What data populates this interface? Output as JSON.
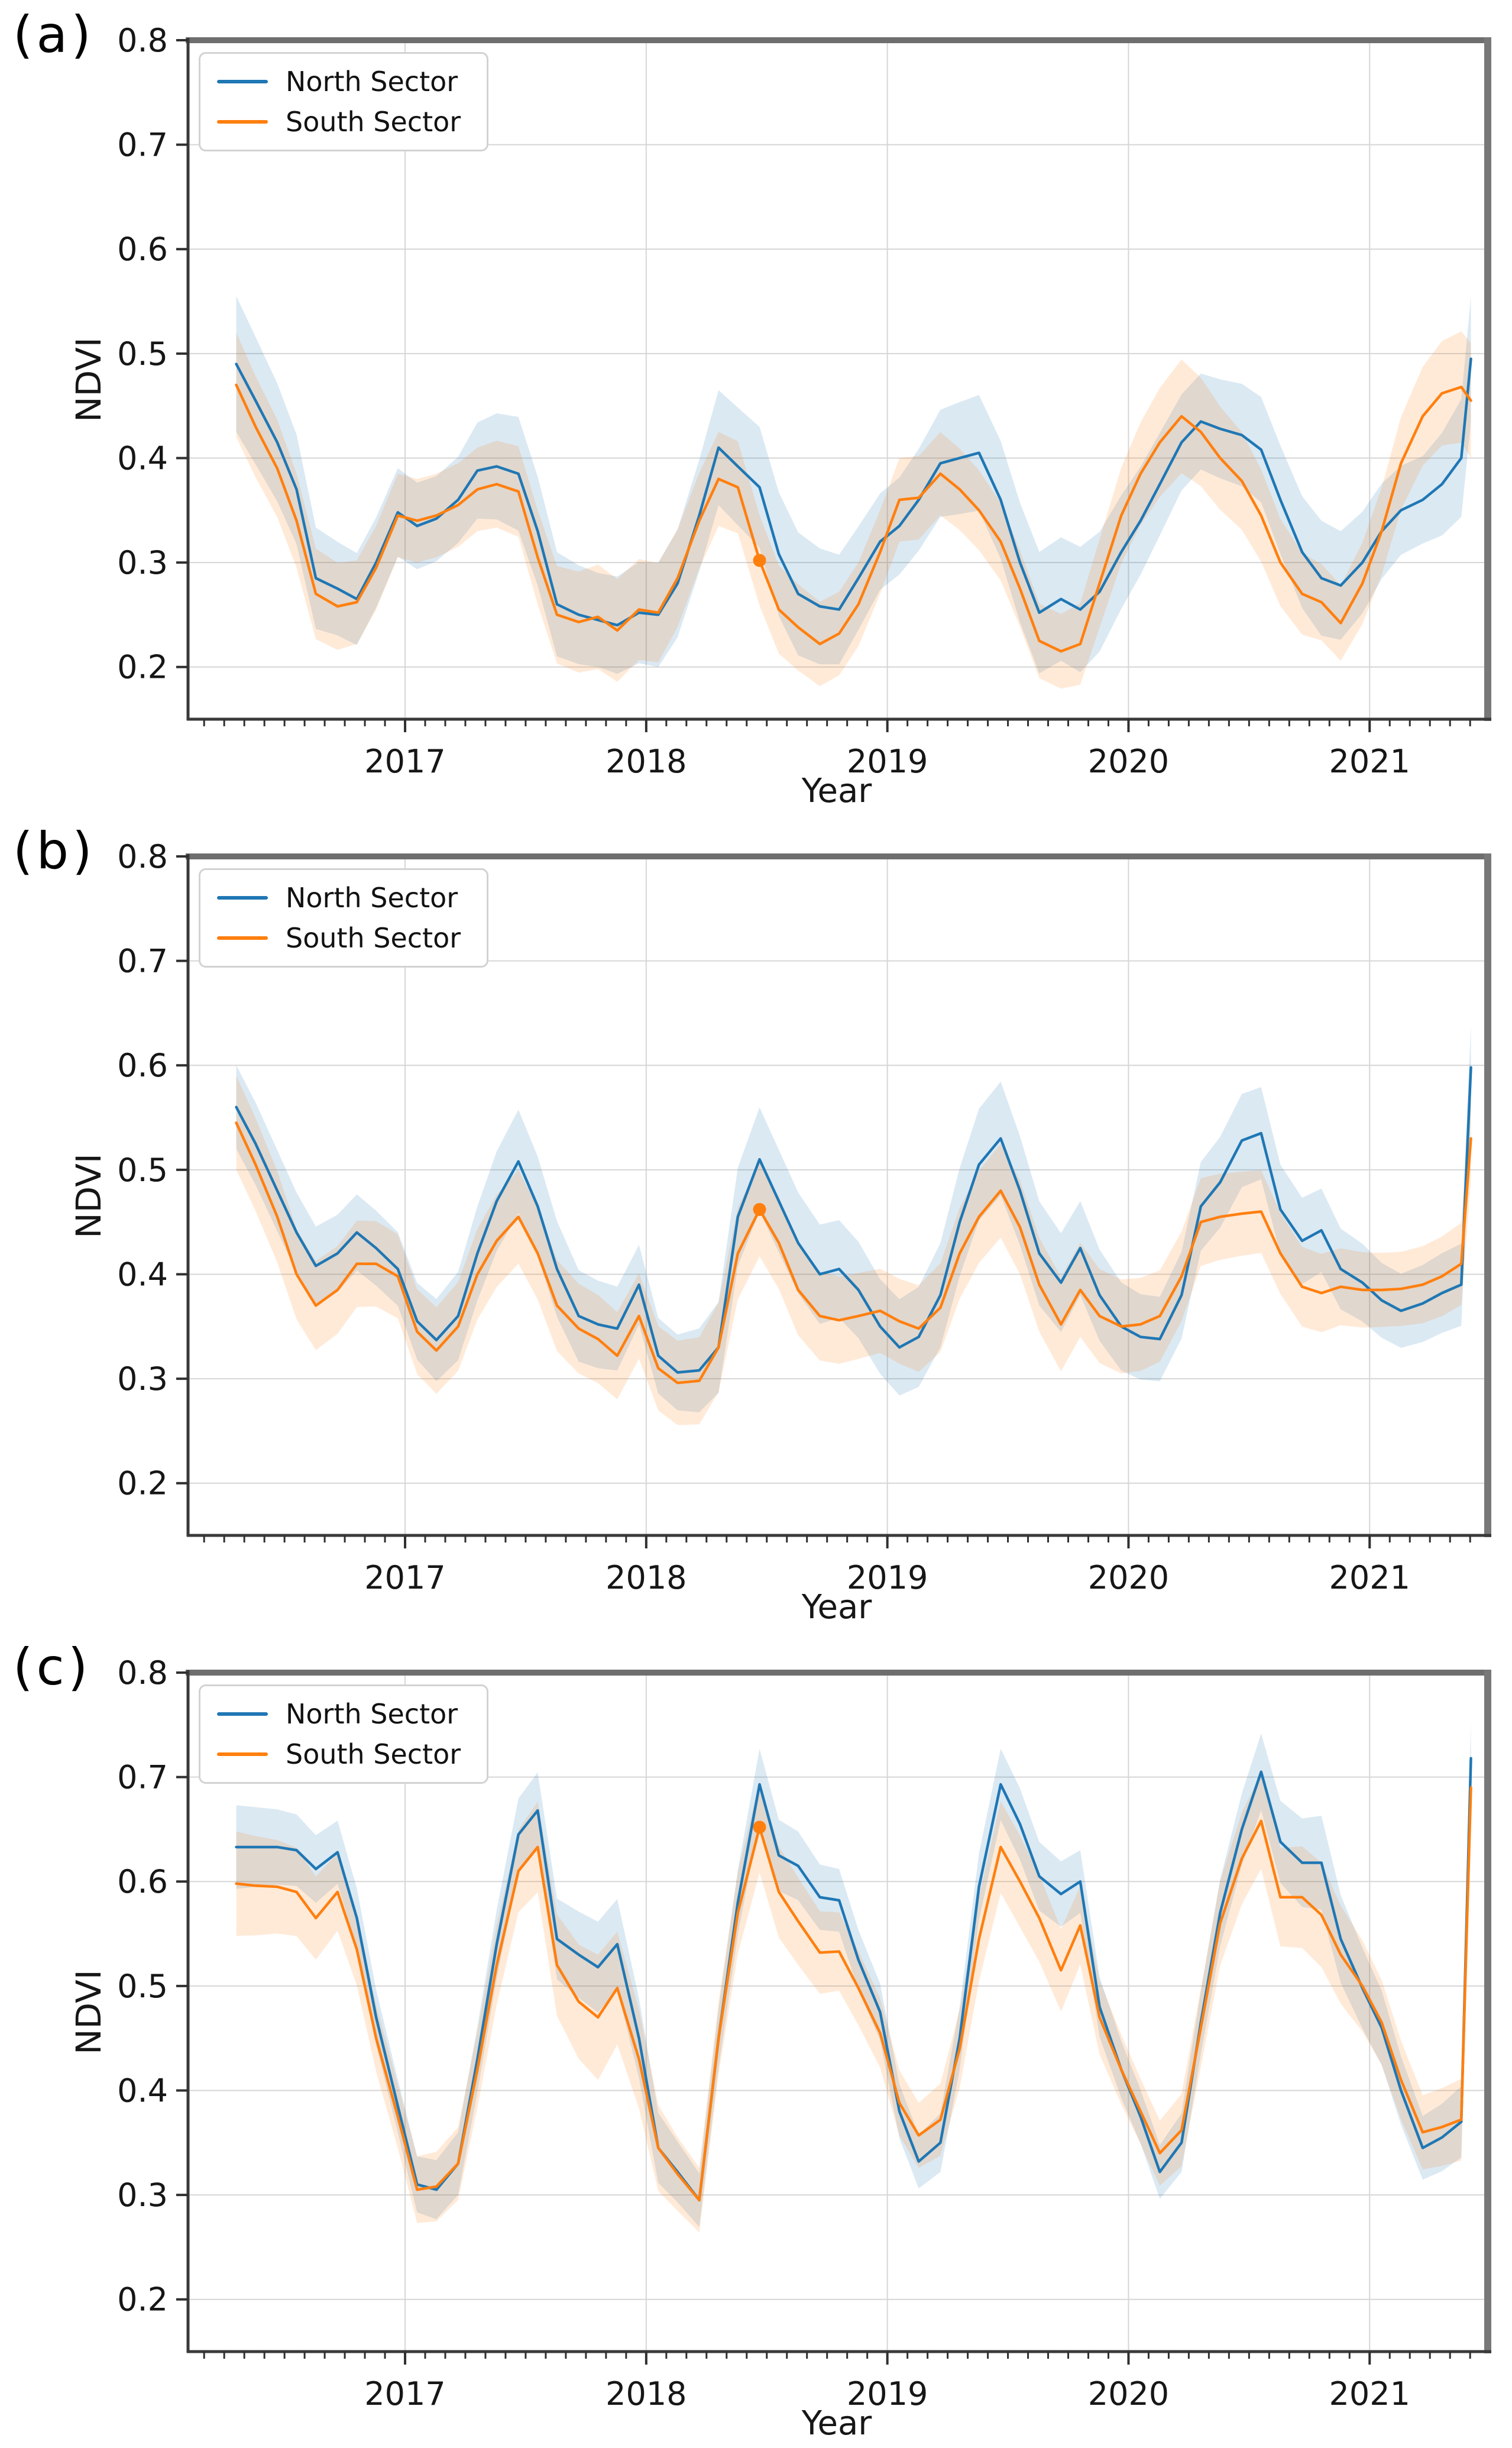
{
  "legend": {
    "north_label": "North Sector",
    "south_label": "South Sector"
  },
  "chart_data": {
    "type": "line",
    "description": "Three stacked NDVI time-series panels (a, b, c), each comparing North Sector vs South Sector means with shaded uncertainty bands, 2016-2021.",
    "xlabel": "Year",
    "ylabel": "NDVI",
    "xlim": [
      2016.1,
      2021.48
    ],
    "ylim": [
      0.15,
      0.8
    ],
    "xticks": [
      2017,
      2018,
      2019,
      2020,
      2021
    ],
    "xtick_labels": [
      "2017",
      "2018",
      "2019",
      "2020",
      "2021"
    ],
    "yticks": [
      0.2,
      0.3,
      0.4,
      0.5,
      0.6,
      0.7,
      0.8
    ],
    "ytick_labels": [
      "0.2",
      "0.3",
      "0.4",
      "0.5",
      "0.6",
      "0.7",
      "0.8"
    ],
    "grid": true,
    "minor_xticks_per_year": 12,
    "band_alpha": 0.16,
    "line_colors": {
      "north": "#1f77b4",
      "south": "#ff7f0e"
    },
    "x": [
      2016.3,
      2016.38,
      2016.47,
      2016.55,
      2016.63,
      2016.72,
      2016.8,
      2016.88,
      2016.97,
      2017.05,
      2017.13,
      2017.22,
      2017.3,
      2017.38,
      2017.47,
      2017.55,
      2017.63,
      2017.72,
      2017.8,
      2017.88,
      2017.97,
      2018.05,
      2018.13,
      2018.22,
      2018.3,
      2018.38,
      2018.47,
      2018.55,
      2018.63,
      2018.72,
      2018.8,
      2018.88,
      2018.97,
      2019.05,
      2019.13,
      2019.22,
      2019.3,
      2019.38,
      2019.47,
      2019.55,
      2019.63,
      2019.72,
      2019.8,
      2019.88,
      2019.97,
      2020.05,
      2020.13,
      2020.22,
      2020.3,
      2020.38,
      2020.47,
      2020.55,
      2020.63,
      2020.72,
      2020.8,
      2020.88,
      2020.97,
      2021.05,
      2021.13,
      2021.22,
      2021.3,
      2021.38,
      2021.42
    ],
    "panels": [
      {
        "id": "a",
        "label": "(a)",
        "highlight_point": {
          "series": "South Sector",
          "x": 2018.47,
          "y": 0.302,
          "color": "#ff7f0e"
        },
        "series": [
          {
            "name": "North Sector",
            "color": "#1f77b4",
            "values": [
              0.49,
              0.455,
              0.415,
              0.37,
              0.285,
              0.275,
              0.265,
              0.3,
              0.348,
              0.335,
              0.342,
              0.36,
              0.388,
              0.392,
              0.385,
              0.33,
              0.26,
              0.25,
              0.245,
              0.24,
              0.252,
              0.25,
              0.28,
              0.345,
              0.41,
              0.392,
              0.372,
              0.308,
              0.27,
              0.258,
              0.255,
              0.285,
              0.32,
              0.335,
              0.36,
              0.395,
              0.4,
              0.405,
              0.36,
              0.3,
              0.252,
              0.265,
              0.255,
              0.272,
              0.31,
              0.34,
              0.375,
              0.415,
              0.435,
              0.428,
              0.422,
              0.408,
              0.36,
              0.31,
              0.285,
              0.278,
              0.3,
              0.33,
              0.35,
              0.36,
              0.375,
              0.4,
              0.495
            ],
            "band_halfwidth": [
              [
                2016.3,
                0.065
              ],
              [
                2016.7,
                0.045
              ],
              [
                2017.2,
                0.04
              ],
              [
                2017.45,
                0.055
              ],
              [
                2017.8,
                0.045
              ],
              [
                2018.3,
                0.055
              ],
              [
                2018.6,
                0.06
              ],
              [
                2019.0,
                0.045
              ],
              [
                2019.35,
                0.055
              ],
              [
                2019.8,
                0.06
              ],
              [
                2020.25,
                0.045
              ],
              [
                2020.8,
                0.055
              ],
              [
                2021.2,
                0.04
              ],
              [
                2021.42,
                0.06
              ]
            ]
          },
          {
            "name": "South Sector",
            "color": "#ff7f0e",
            "values": [
              0.47,
              0.43,
              0.39,
              0.34,
              0.27,
              0.258,
              0.262,
              0.295,
              0.345,
              0.34,
              0.345,
              0.355,
              0.37,
              0.375,
              0.368,
              0.305,
              0.25,
              0.243,
              0.248,
              0.235,
              0.255,
              0.252,
              0.285,
              0.34,
              0.38,
              0.372,
              0.302,
              0.255,
              0.238,
              0.222,
              0.232,
              0.26,
              0.31,
              0.36,
              0.362,
              0.385,
              0.37,
              0.35,
              0.32,
              0.275,
              0.225,
              0.215,
              0.222,
              0.28,
              0.345,
              0.385,
              0.415,
              0.44,
              0.425,
              0.4,
              0.378,
              0.345,
              0.3,
              0.27,
              0.262,
              0.242,
              0.28,
              0.33,
              0.395,
              0.44,
              0.462,
              0.468,
              0.455
            ],
            "band_halfwidth": [
              [
                2016.3,
                0.05
              ],
              [
                2016.8,
                0.04
              ],
              [
                2017.3,
                0.04
              ],
              [
                2017.8,
                0.05
              ],
              [
                2018.3,
                0.045
              ],
              [
                2018.75,
                0.04
              ],
              [
                2019.2,
                0.04
              ],
              [
                2019.7,
                0.035
              ],
              [
                2020.2,
                0.055
              ],
              [
                2020.85,
                0.035
              ],
              [
                2021.3,
                0.05
              ],
              [
                2021.42,
                0.055
              ]
            ]
          }
        ]
      },
      {
        "id": "b",
        "label": "(b)",
        "highlight_point": {
          "series": "South Sector",
          "x": 2018.47,
          "y": 0.462,
          "color": "#ff7f0e"
        },
        "series": [
          {
            "name": "North Sector",
            "color": "#1f77b4",
            "values": [
              0.56,
              0.525,
              0.48,
              0.44,
              0.408,
              0.42,
              0.44,
              0.425,
              0.405,
              0.355,
              0.337,
              0.36,
              0.42,
              0.47,
              0.508,
              0.465,
              0.405,
              0.36,
              0.352,
              0.348,
              0.39,
              0.322,
              0.306,
              0.308,
              0.33,
              0.455,
              0.51,
              0.47,
              0.43,
              0.4,
              0.405,
              0.385,
              0.35,
              0.33,
              0.34,
              0.38,
              0.45,
              0.505,
              0.53,
              0.48,
              0.42,
              0.392,
              0.425,
              0.38,
              0.35,
              0.34,
              0.338,
              0.38,
              0.465,
              0.488,
              0.528,
              0.535,
              0.462,
              0.432,
              0.442,
              0.405,
              0.392,
              0.375,
              0.365,
              0.372,
              0.382,
              0.39,
              0.598
            ],
            "band_halfwidth": [
              [
                2016.3,
                0.04
              ],
              [
                2017.0,
                0.035
              ],
              [
                2017.45,
                0.05
              ],
              [
                2018.1,
                0.035
              ],
              [
                2018.45,
                0.05
              ],
              [
                2019.0,
                0.045
              ],
              [
                2019.45,
                0.055
              ],
              [
                2019.8,
                0.045
              ],
              [
                2020.1,
                0.04
              ],
              [
                2020.5,
                0.045
              ],
              [
                2021.1,
                0.035
              ],
              [
                2021.42,
                0.04
              ]
            ]
          },
          {
            "name": "South Sector",
            "color": "#ff7f0e",
            "values": [
              0.545,
              0.505,
              0.455,
              0.4,
              0.37,
              0.385,
              0.41,
              0.41,
              0.398,
              0.345,
              0.327,
              0.35,
              0.4,
              0.432,
              0.455,
              0.42,
              0.37,
              0.348,
              0.338,
              0.322,
              0.36,
              0.31,
              0.296,
              0.298,
              0.33,
              0.42,
              0.462,
              0.43,
              0.385,
              0.36,
              0.356,
              0.36,
              0.365,
              0.355,
              0.348,
              0.368,
              0.42,
              0.455,
              0.48,
              0.445,
              0.39,
              0.352,
              0.385,
              0.36,
              0.35,
              0.352,
              0.36,
              0.398,
              0.45,
              0.455,
              0.458,
              0.46,
              0.42,
              0.388,
              0.382,
              0.388,
              0.385,
              0.385,
              0.386,
              0.39,
              0.398,
              0.41,
              0.53
            ],
            "band_halfwidth": [
              [
                2016.3,
                0.045
              ],
              [
                2017.0,
                0.04
              ],
              [
                2017.45,
                0.045
              ],
              [
                2018.1,
                0.04
              ],
              [
                2018.45,
                0.045
              ],
              [
                2019.0,
                0.04
              ],
              [
                2019.45,
                0.045
              ],
              [
                2020.0,
                0.045
              ],
              [
                2020.5,
                0.04
              ],
              [
                2021.1,
                0.035
              ],
              [
                2021.42,
                0.04
              ]
            ]
          }
        ]
      },
      {
        "id": "c",
        "label": "(c)",
        "highlight_point": {
          "series": "South Sector",
          "x": 2018.47,
          "y": 0.652,
          "color": "#ff7f0e"
        },
        "series": [
          {
            "name": "North Sector",
            "color": "#1f77b4",
            "values": [
              0.633,
              0.633,
              0.633,
              0.63,
              0.612,
              0.628,
              0.565,
              0.47,
              0.385,
              0.31,
              0.305,
              0.33,
              0.43,
              0.54,
              0.645,
              0.668,
              0.545,
              0.53,
              0.518,
              0.54,
              0.45,
              0.345,
              0.322,
              0.295,
              0.45,
              0.58,
              0.693,
              0.625,
              0.615,
              0.585,
              0.582,
              0.525,
              0.475,
              0.38,
              0.332,
              0.35,
              0.45,
              0.595,
              0.693,
              0.655,
              0.605,
              0.588,
              0.6,
              0.48,
              0.42,
              0.375,
              0.322,
              0.35,
              0.465,
              0.57,
              0.65,
              0.705,
              0.638,
              0.618,
              0.618,
              0.545,
              0.498,
              0.46,
              0.4,
              0.345,
              0.355,
              0.37,
              0.718
            ],
            "band_halfwidth": [
              [
                2016.3,
                0.04
              ],
              [
                2016.95,
                0.025
              ],
              [
                2017.5,
                0.035
              ],
              [
                2017.85,
                0.045
              ],
              [
                2018.2,
                0.025
              ],
              [
                2018.5,
                0.035
              ],
              [
                2019.1,
                0.025
              ],
              [
                2019.5,
                0.035
              ],
              [
                2020.1,
                0.025
              ],
              [
                2020.5,
                0.035
              ],
              [
                2020.8,
                0.045
              ],
              [
                2021.2,
                0.03
              ],
              [
                2021.42,
                0.035
              ]
            ]
          },
          {
            "name": "South Sector",
            "color": "#ff7f0e",
            "values": [
              0.598,
              0.596,
              0.595,
              0.59,
              0.565,
              0.59,
              0.535,
              0.45,
              0.375,
              0.305,
              0.308,
              0.33,
              0.42,
              0.52,
              0.61,
              0.633,
              0.52,
              0.485,
              0.47,
              0.498,
              0.43,
              0.345,
              0.32,
              0.295,
              0.45,
              0.57,
              0.652,
              0.59,
              0.562,
              0.532,
              0.533,
              0.498,
              0.455,
              0.388,
              0.357,
              0.372,
              0.44,
              0.545,
              0.633,
              0.6,
              0.565,
              0.515,
              0.558,
              0.47,
              0.42,
              0.38,
              0.34,
              0.362,
              0.46,
              0.56,
              0.622,
              0.658,
              0.585,
              0.585,
              0.568,
              0.53,
              0.5,
              0.465,
              0.41,
              0.36,
              0.365,
              0.372,
              0.69
            ],
            "band_halfwidth": [
              [
                2016.3,
                0.05
              ],
              [
                2016.95,
                0.03
              ],
              [
                2017.5,
                0.04
              ],
              [
                2017.8,
                0.06
              ],
              [
                2018.2,
                0.03
              ],
              [
                2018.5,
                0.045
              ],
              [
                2019.1,
                0.03
              ],
              [
                2019.5,
                0.045
              ],
              [
                2020.1,
                0.03
              ],
              [
                2020.5,
                0.045
              ],
              [
                2020.8,
                0.05
              ],
              [
                2021.2,
                0.035
              ],
              [
                2021.42,
                0.04
              ]
            ]
          }
        ]
      }
    ]
  }
}
